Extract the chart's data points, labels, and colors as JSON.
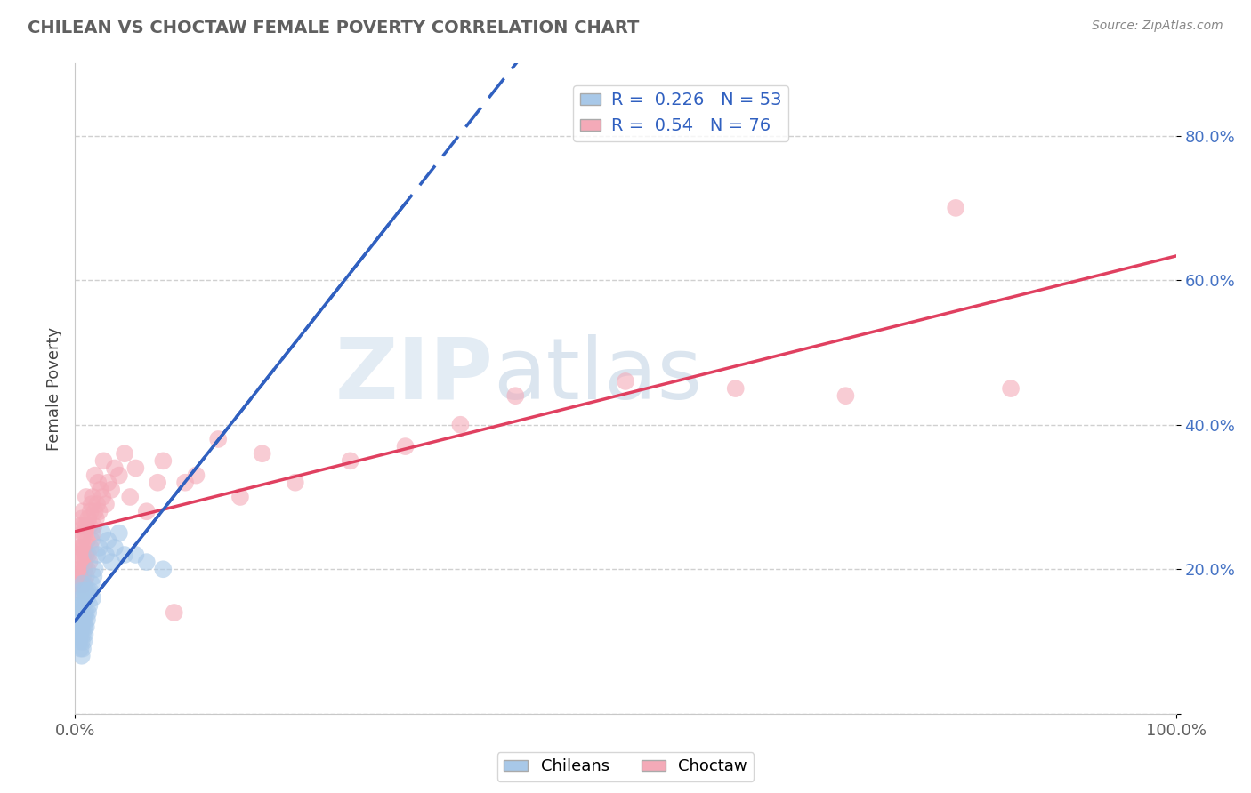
{
  "title": "CHILEAN VS CHOCTAW FEMALE POVERTY CORRELATION CHART",
  "source_text": "Source: ZipAtlas.com",
  "ylabel": "Female Poverty",
  "xlim": [
    0.0,
    1.0
  ],
  "ylim": [
    0.0,
    0.9
  ],
  "yticks": [
    0.0,
    0.2,
    0.4,
    0.6,
    0.8
  ],
  "ytick_labels": [
    "",
    "20.0%",
    "40.0%",
    "60.0%",
    "80.0%"
  ],
  "xticks": [
    0.0,
    1.0
  ],
  "xtick_labels": [
    "0.0%",
    "100.0%"
  ],
  "chilean_R": 0.226,
  "chilean_N": 53,
  "choctaw_R": 0.54,
  "choctaw_N": 76,
  "chilean_color": "#a8c8e8",
  "choctaw_color": "#f4aab8",
  "chilean_line_color": "#3060c0",
  "choctaw_line_color": "#e04060",
  "grid_color": "#d0d0d0",
  "background_color": "#ffffff",
  "watermark_zip": "ZIP",
  "watermark_atlas": "atlas",
  "title_color": "#606060",
  "tick_color_y": "#4472c4",
  "tick_color_x": "#606060",
  "source_color": "#888888",
  "chilean_x": [
    0.002,
    0.003,
    0.003,
    0.004,
    0.004,
    0.004,
    0.005,
    0.005,
    0.005,
    0.005,
    0.005,
    0.006,
    0.006,
    0.006,
    0.006,
    0.006,
    0.007,
    0.007,
    0.007,
    0.007,
    0.007,
    0.008,
    0.008,
    0.008,
    0.008,
    0.009,
    0.009,
    0.009,
    0.01,
    0.01,
    0.01,
    0.011,
    0.011,
    0.012,
    0.012,
    0.013,
    0.014,
    0.015,
    0.016,
    0.017,
    0.018,
    0.02,
    0.022,
    0.025,
    0.028,
    0.03,
    0.033,
    0.036,
    0.04,
    0.045,
    0.055,
    0.065,
    0.08
  ],
  "chilean_y": [
    0.13,
    0.11,
    0.14,
    0.1,
    0.12,
    0.15,
    0.09,
    0.11,
    0.13,
    0.15,
    0.17,
    0.08,
    0.1,
    0.12,
    0.14,
    0.16,
    0.09,
    0.11,
    0.13,
    0.15,
    0.18,
    0.1,
    0.12,
    0.14,
    0.17,
    0.11,
    0.13,
    0.16,
    0.12,
    0.14,
    0.17,
    0.13,
    0.16,
    0.14,
    0.17,
    0.15,
    0.17,
    0.18,
    0.16,
    0.19,
    0.2,
    0.22,
    0.23,
    0.25,
    0.22,
    0.24,
    0.21,
    0.23,
    0.25,
    0.22,
    0.22,
    0.21,
    0.2
  ],
  "choctaw_x": [
    0.002,
    0.003,
    0.003,
    0.004,
    0.004,
    0.005,
    0.005,
    0.005,
    0.005,
    0.006,
    0.006,
    0.006,
    0.006,
    0.007,
    0.007,
    0.007,
    0.007,
    0.008,
    0.008,
    0.008,
    0.009,
    0.009,
    0.009,
    0.01,
    0.01,
    0.01,
    0.01,
    0.011,
    0.011,
    0.012,
    0.012,
    0.013,
    0.013,
    0.014,
    0.014,
    0.015,
    0.015,
    0.016,
    0.016,
    0.017,
    0.018,
    0.018,
    0.019,
    0.02,
    0.021,
    0.022,
    0.023,
    0.025,
    0.026,
    0.028,
    0.03,
    0.033,
    0.036,
    0.04,
    0.045,
    0.05,
    0.055,
    0.065,
    0.075,
    0.08,
    0.09,
    0.1,
    0.11,
    0.13,
    0.15,
    0.17,
    0.2,
    0.25,
    0.3,
    0.35,
    0.4,
    0.5,
    0.6,
    0.7,
    0.8,
    0.85
  ],
  "choctaw_y": [
    0.2,
    0.18,
    0.22,
    0.19,
    0.23,
    0.17,
    0.2,
    0.23,
    0.26,
    0.18,
    0.21,
    0.24,
    0.27,
    0.19,
    0.22,
    0.25,
    0.28,
    0.2,
    0.23,
    0.26,
    0.18,
    0.21,
    0.25,
    0.19,
    0.22,
    0.26,
    0.3,
    0.2,
    0.24,
    0.22,
    0.27,
    0.21,
    0.26,
    0.23,
    0.28,
    0.24,
    0.29,
    0.25,
    0.3,
    0.26,
    0.28,
    0.33,
    0.27,
    0.29,
    0.32,
    0.28,
    0.31,
    0.3,
    0.35,
    0.29,
    0.32,
    0.31,
    0.34,
    0.33,
    0.36,
    0.3,
    0.34,
    0.28,
    0.32,
    0.35,
    0.14,
    0.32,
    0.33,
    0.38,
    0.3,
    0.36,
    0.32,
    0.35,
    0.37,
    0.4,
    0.44,
    0.46,
    0.45,
    0.44,
    0.7,
    0.45
  ]
}
